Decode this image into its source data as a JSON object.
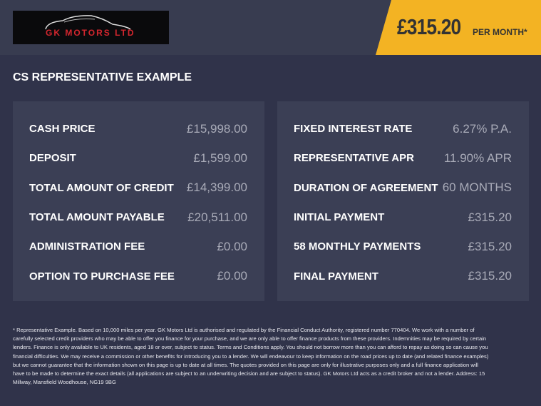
{
  "logo": {
    "text": "GK MOTORS LTD"
  },
  "badge": {
    "price": "£315.20",
    "suffix": "PER MONTH*"
  },
  "title": "CS REPRESENTATIVE EXAMPLE",
  "left": [
    {
      "label": "CASH PRICE",
      "value": "£15,998.00"
    },
    {
      "label": "DEPOSIT",
      "value": "£1,599.00"
    },
    {
      "label": "TOTAL AMOUNT OF CREDIT",
      "value": "£14,399.00"
    },
    {
      "label": "TOTAL AMOUNT PAYABLE",
      "value": "£20,511.00"
    },
    {
      "label": "ADMINISTRATION FEE",
      "value": "£0.00"
    },
    {
      "label": "OPTION TO PURCHASE FEE",
      "value": "£0.00"
    }
  ],
  "right": [
    {
      "label": "FIXED INTEREST RATE",
      "value": "6.27% P.A."
    },
    {
      "label": "REPRESENTATIVE APR",
      "value": "11.90% APR"
    },
    {
      "label": "DURATION OF AGREEMENT",
      "value": "60 MONTHS"
    },
    {
      "label": "INITIAL PAYMENT",
      "value": "£315.20"
    },
    {
      "label": "58 MONTHLY PAYMENTS",
      "value": "£315.20"
    },
    {
      "label": "FINAL PAYMENT",
      "value": "£315.20"
    }
  ],
  "disclaimer": "* Representative Example. Based on 10,000 miles per year. GK Motors Ltd is authorised and regulated by the Financial Conduct Authority, registered number 770404. We work with a number of carefully selected credit providers who may be able to offer you finance for your purchase, and we are only able to offer finance products from these providers. Indemnities may be required by certain lenders. Finance is only available to UK residents, aged 18 or over, subject to status. Terms and Conditions apply. You should not borrow more than you can afford to repay as doing so can cause you financial difficulties. We may receive a commission or other benefits for introducing you to a lender. We will endeavour to keep information on the road prices up to date (and related finance examples) but we cannot guarantee that the information shown on this page is up to date at all times. The quotes provided on this page are only for illustrative purposes only and a full finance application will have to be made to determine the exact details (all applications are subject to an underwriting decision and are subject to status). GK Motors Ltd acts as a credit broker and not a lender. Address: 15 Millway, Mansfield Woodhouse, NG19 9BG"
}
